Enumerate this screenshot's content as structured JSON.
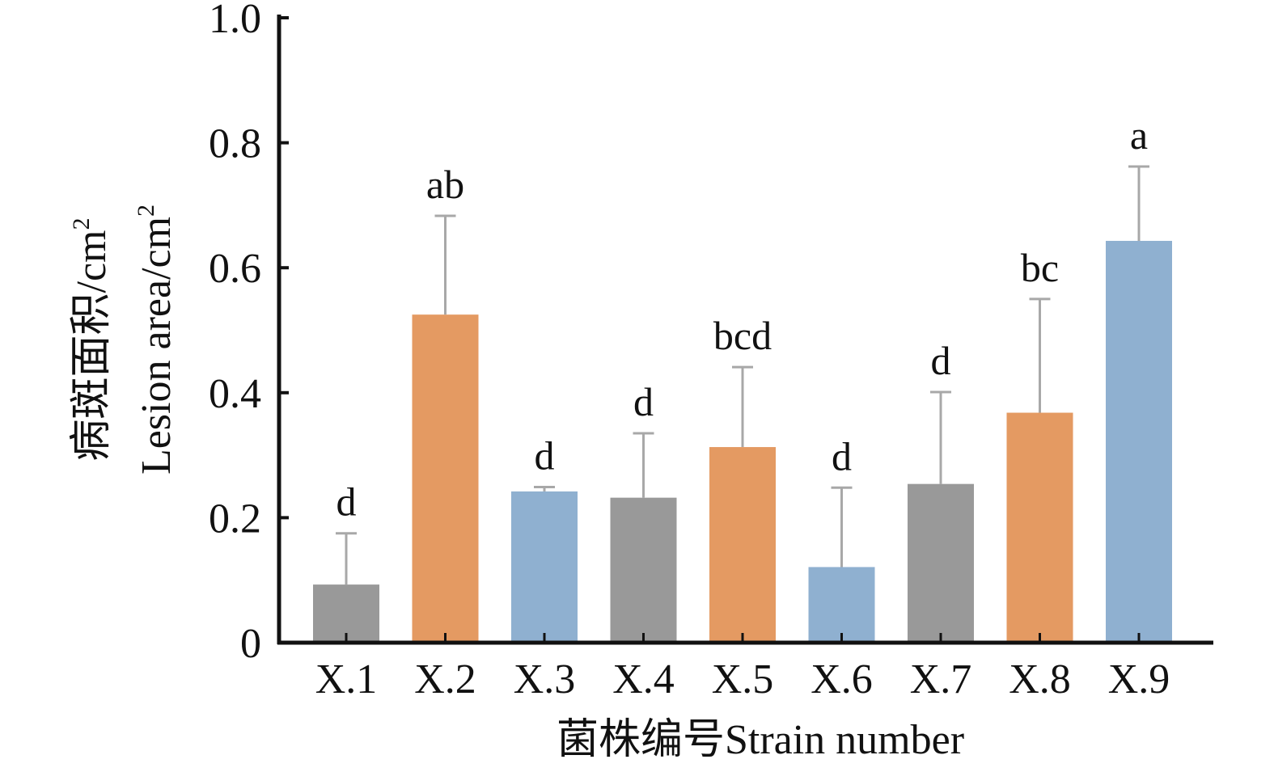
{
  "chart_data": {
    "type": "bar",
    "ylabel_cn": "病斑面积/cm",
    "ylabel_en": "Lesion area/cm",
    "ylabel_sup": "2",
    "xlabel": "菌株编号Strain number",
    "ylim": [
      0,
      1.0
    ],
    "yticks": [
      {
        "value": 0,
        "label": "0"
      },
      {
        "value": 0.2,
        "label": "0.2"
      },
      {
        "value": 0.4,
        "label": "0.4"
      },
      {
        "value": 0.6,
        "label": "0.6"
      },
      {
        "value": 0.8,
        "label": "0.8"
      },
      {
        "value": 1.0,
        "label": "1.0"
      }
    ],
    "grid": false,
    "legend": "none",
    "bars": [
      {
        "category": "X.1",
        "value": 0.093,
        "error": 0.082,
        "sig": "d",
        "color": "#999999"
      },
      {
        "category": "X.2",
        "value": 0.525,
        "error": 0.158,
        "sig": "ab",
        "color": "#e49a62"
      },
      {
        "category": "X.3",
        "value": 0.242,
        "error": 0.007,
        "sig": "d",
        "color": "#8fb0d0"
      },
      {
        "category": "X.4",
        "value": 0.232,
        "error": 0.103,
        "sig": "d",
        "color": "#999999"
      },
      {
        "category": "X.5",
        "value": 0.313,
        "error": 0.128,
        "sig": "bcd",
        "color": "#e49a62"
      },
      {
        "category": "X.6",
        "value": 0.121,
        "error": 0.127,
        "sig": "d",
        "color": "#8fb0d0"
      },
      {
        "category": "X.7",
        "value": 0.254,
        "error": 0.147,
        "sig": "d",
        "color": "#999999"
      },
      {
        "category": "X.8",
        "value": 0.368,
        "error": 0.182,
        "sig": "bc",
        "color": "#e49a62"
      },
      {
        "category": "X.9",
        "value": 0.643,
        "error": 0.119,
        "sig": "a",
        "color": "#8fb0d0"
      }
    ],
    "errorbar_color": "#a8a8a8",
    "axis_color": "#111111"
  }
}
